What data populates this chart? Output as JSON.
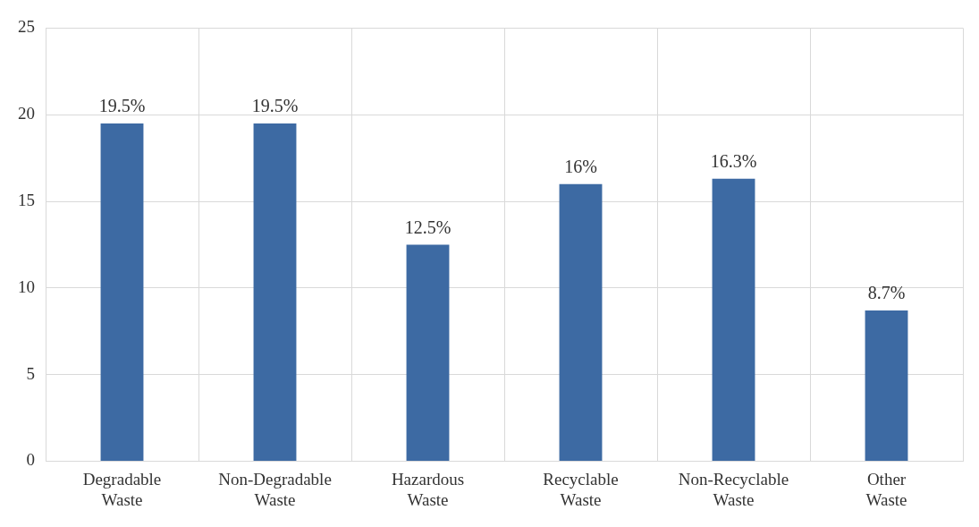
{
  "chart_data": {
    "type": "bar",
    "categories": [
      "Degradable Waste",
      "Non-Degradable Waste",
      "Hazardous Waste",
      "Recyclable Waste",
      "Non-Recyclable Waste",
      "Other Waste"
    ],
    "values": [
      19.5,
      19.5,
      12.5,
      16,
      16.3,
      8.7
    ],
    "value_labels": [
      "19.5%",
      "19.5%",
      "12.5%",
      "16%",
      "16.3%",
      "8.7%"
    ],
    "color": "#3d6aa3",
    "ylim": [
      0,
      25
    ],
    "yticks": [
      0,
      5,
      10,
      15,
      20,
      25
    ],
    "grid": true,
    "legend": false
  }
}
